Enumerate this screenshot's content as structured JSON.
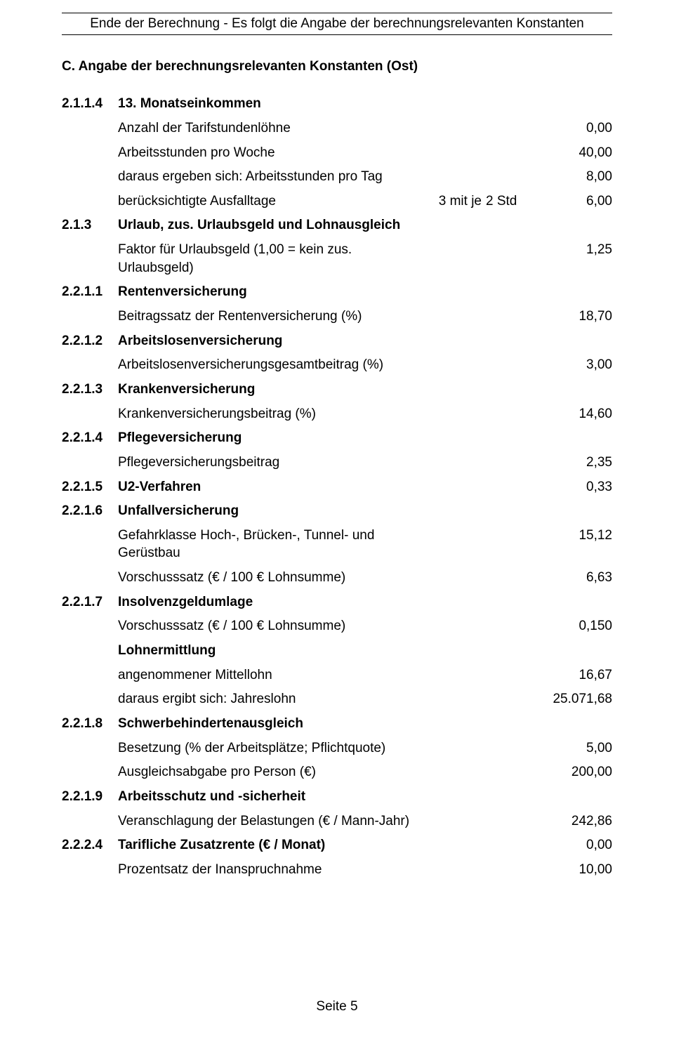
{
  "header_line": "Ende der Berechnung - Es folgt die Angabe der berechnungsrelevanten Konstanten",
  "section_title": "C. Angabe der berechnungsrelevanten Konstanten   (Ost)",
  "rows": [
    {
      "num": "2.1.1.4",
      "num_bold": true,
      "label": "13. Monatseinkommen",
      "label_bold": true,
      "mid1": "",
      "mid2": "",
      "val": ""
    },
    {
      "num": "",
      "label": "Anzahl der Tarifstundenlöhne",
      "mid1": "",
      "mid2": "",
      "val": "0,00"
    },
    {
      "num": "",
      "label": "Arbeitsstunden pro Woche",
      "mid1": "",
      "mid2": "",
      "val": "40,00"
    },
    {
      "num": "",
      "label": "daraus ergeben sich: Arbeitsstunden pro Tag",
      "mid1": "",
      "mid2": "",
      "val": "8,00"
    },
    {
      "num": "",
      "label": "berücksichtigte Ausfalltage",
      "mid1": "3 mit je",
      "mid2": "2 Std",
      "val": "6,00"
    },
    {
      "num": "2.1.3",
      "num_bold": true,
      "label": "Urlaub, zus. Urlaubsgeld und Lohnausgleich",
      "label_bold": true,
      "mid1": "",
      "mid2": "",
      "val": ""
    },
    {
      "num": "",
      "label": "Faktor für Urlaubsgeld (1,00 = kein zus. Urlaubsgeld)",
      "mid1": "",
      "mid2": "",
      "val": "1,25"
    },
    {
      "num": "2.2.1.1",
      "num_bold": true,
      "label": "Rentenversicherung",
      "label_bold": true,
      "mid1": "",
      "mid2": "",
      "val": ""
    },
    {
      "num": "",
      "label": "Beitragssatz der Rentenversicherung (%)",
      "mid1": "",
      "mid2": "",
      "val": "18,70"
    },
    {
      "num": "2.2.1.2",
      "num_bold": true,
      "label": "Arbeitslosenversicherung",
      "label_bold": true,
      "mid1": "",
      "mid2": "",
      "val": ""
    },
    {
      "num": "",
      "label": "Arbeitslosenversicherungsgesamtbeitrag (%)",
      "mid1": "",
      "mid2": "",
      "val": "3,00"
    },
    {
      "num": "2.2.1.3",
      "num_bold": true,
      "label": "Krankenversicherung",
      "label_bold": true,
      "mid1": "",
      "mid2": "",
      "val": ""
    },
    {
      "num": "",
      "label": "Krankenversicherungsbeitrag (%)",
      "mid1": "",
      "mid2": "",
      "val": "14,60"
    },
    {
      "num": "2.2.1.4",
      "num_bold": true,
      "label": "Pflegeversicherung",
      "label_bold": true,
      "mid1": "",
      "mid2": "",
      "val": ""
    },
    {
      "num": "",
      "label": "Pflegeversicherungsbeitrag",
      "mid1": "",
      "mid2": "",
      "val": "2,35"
    },
    {
      "num": "2.2.1.5",
      "num_bold": true,
      "label": "U2-Verfahren",
      "label_bold": true,
      "mid1": "",
      "mid2": "",
      "val": "0,33"
    },
    {
      "num": "2.2.1.6",
      "num_bold": true,
      "label": "Unfallversicherung",
      "label_bold": true,
      "mid1": "",
      "mid2": "",
      "val": ""
    },
    {
      "num": "",
      "label": "Gefahrklasse Hoch-, Brücken-, Tunnel- und Gerüstbau",
      "mid1": "",
      "mid2": "",
      "val": "15,12"
    },
    {
      "num": "",
      "label": "Vorschusssatz (€ / 100 € Lohnsumme)",
      "mid1": "",
      "mid2": "",
      "val": "6,63"
    },
    {
      "num": "2.2.1.7",
      "num_bold": true,
      "label": "Insolvenzgeldumlage",
      "label_bold": true,
      "mid1": "",
      "mid2": "",
      "val": ""
    },
    {
      "num": "",
      "label": "Vorschusssatz (€ / 100 € Lohnsumme)",
      "mid1": "",
      "mid2": "",
      "val": "0,150"
    },
    {
      "num": "",
      "label": "Lohnermittlung",
      "label_bold": true,
      "mid1": "",
      "mid2": "",
      "val": ""
    },
    {
      "num": "",
      "label": "angenommener Mittellohn",
      "mid1": "",
      "mid2": "",
      "val": "16,67"
    },
    {
      "num": "",
      "label": "daraus ergibt sich: Jahreslohn",
      "mid1": "",
      "mid2": "",
      "val": "25.071,68"
    },
    {
      "num": "2.2.1.8",
      "num_bold": true,
      "label": "Schwerbehindertenausgleich",
      "label_bold": true,
      "mid1": "",
      "mid2": "",
      "val": ""
    },
    {
      "num": "",
      "label": "Besetzung (% der Arbeitsplätze; Pflichtquote)",
      "mid1": "",
      "mid2": "",
      "val": "5,00"
    },
    {
      "num": "",
      "label": "Ausgleichsabgabe pro Person (€)",
      "mid1": "",
      "mid2": "",
      "val": "200,00"
    },
    {
      "num": "2.2.1.9",
      "num_bold": true,
      "label": "Arbeitsschutz und -sicherheit",
      "label_bold": true,
      "mid1": "",
      "mid2": "",
      "val": ""
    },
    {
      "num": "",
      "label": "Veranschlagung der Belastungen (€ / Mann-Jahr)",
      "mid1": "",
      "mid2": "",
      "val": "242,86"
    },
    {
      "num": "2.2.2.4",
      "num_bold": true,
      "label": "Tarifliche Zusatzrente (€ / Monat)",
      "label_bold": true,
      "mid1": "",
      "mid2": "",
      "val": "0,00"
    },
    {
      "num": "",
      "label": "Prozentsatz der Inanspruchnahme",
      "mid1": "",
      "mid2": "",
      "val": "10,00"
    }
  ],
  "footer": "Seite 5"
}
